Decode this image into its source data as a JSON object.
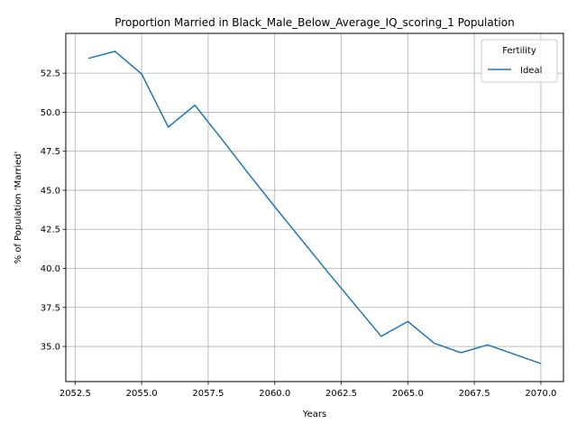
{
  "chart_data": {
    "type": "line",
    "title": "Proportion Married in Black_Male_Below_Average_IQ_scoring_1 Population",
    "xlabel": "Years",
    "ylabel": "% of Population 'Married'",
    "xlim": [
      2052.15,
      2070.85
    ],
    "ylim": [
      32.75,
      55.05
    ],
    "xticks": [
      2052.5,
      2055.0,
      2057.5,
      2060.0,
      2062.5,
      2065.0,
      2067.5,
      2070.0
    ],
    "xtick_labels": [
      "2052.5",
      "2055.0",
      "2057.5",
      "2060.0",
      "2062.5",
      "2065.0",
      "2067.5",
      "2070.0"
    ],
    "yticks": [
      35.0,
      37.5,
      40.0,
      42.5,
      45.0,
      47.5,
      50.0,
      52.5
    ],
    "ytick_labels": [
      "35.0",
      "37.5",
      "40.0",
      "42.5",
      "45.0",
      "47.5",
      "50.0",
      "52.5"
    ],
    "grid": true,
    "legend_title": "Fertility",
    "legend_position": "top-right",
    "series": [
      {
        "name": "Ideal",
        "color": "#1f77b4",
        "x": [
          2053,
          2054,
          2055,
          2056,
          2057,
          2058,
          2059,
          2060,
          2061,
          2062,
          2063,
          2064,
          2065,
          2066,
          2067,
          2068,
          2069,
          2070
        ],
        "values": [
          53.45,
          53.9,
          52.45,
          49.05,
          50.45,
          48.3,
          46.1,
          43.95,
          41.85,
          39.75,
          37.7,
          35.65,
          36.6,
          35.2,
          34.6,
          35.1,
          34.5,
          33.9
        ]
      }
    ]
  }
}
